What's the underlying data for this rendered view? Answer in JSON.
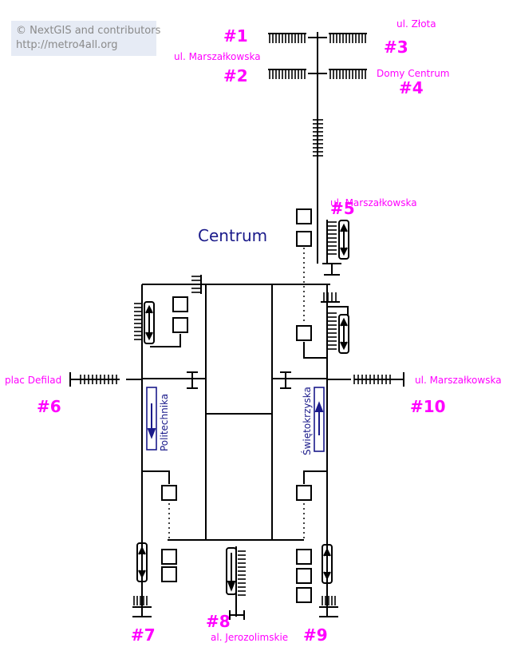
{
  "copyright": {
    "line1": "© NextGIS and contributors",
    "line2": "http://metro4all.org"
  },
  "station": "Centrum",
  "platforms": {
    "left": "Politechnika",
    "right": "Świętokrzyska"
  },
  "exits": {
    "e1": {
      "num": "#1",
      "street": ""
    },
    "e2": {
      "num": "#2",
      "street": "ul. Marszałkowska"
    },
    "e3": {
      "num": "#3",
      "street": "ul. Złota"
    },
    "e4": {
      "num": "#4",
      "street": "Domy Centrum"
    },
    "e5": {
      "num": "#5",
      "street": "ul. Marszałkowska"
    },
    "e6": {
      "num": "#6",
      "street": "plac Defilad"
    },
    "e7": {
      "num": "#7",
      "street": ""
    },
    "e8": {
      "num": "#8",
      "street": "al. Jerozolimskie"
    },
    "e9": {
      "num": "#9",
      "street": ""
    },
    "e10": {
      "num": "#10",
      "street": "ul. Marszałkowska"
    }
  },
  "colors": {
    "label": "#ff00ff",
    "station": "#1a1a8a",
    "platform_box": "#1a1a8a",
    "line": "#000000",
    "copyright_bg": "#e6ebf5"
  },
  "icons": [
    "stairs-icon",
    "escalator-icon",
    "elevator-icon",
    "turnstile-icon"
  ]
}
